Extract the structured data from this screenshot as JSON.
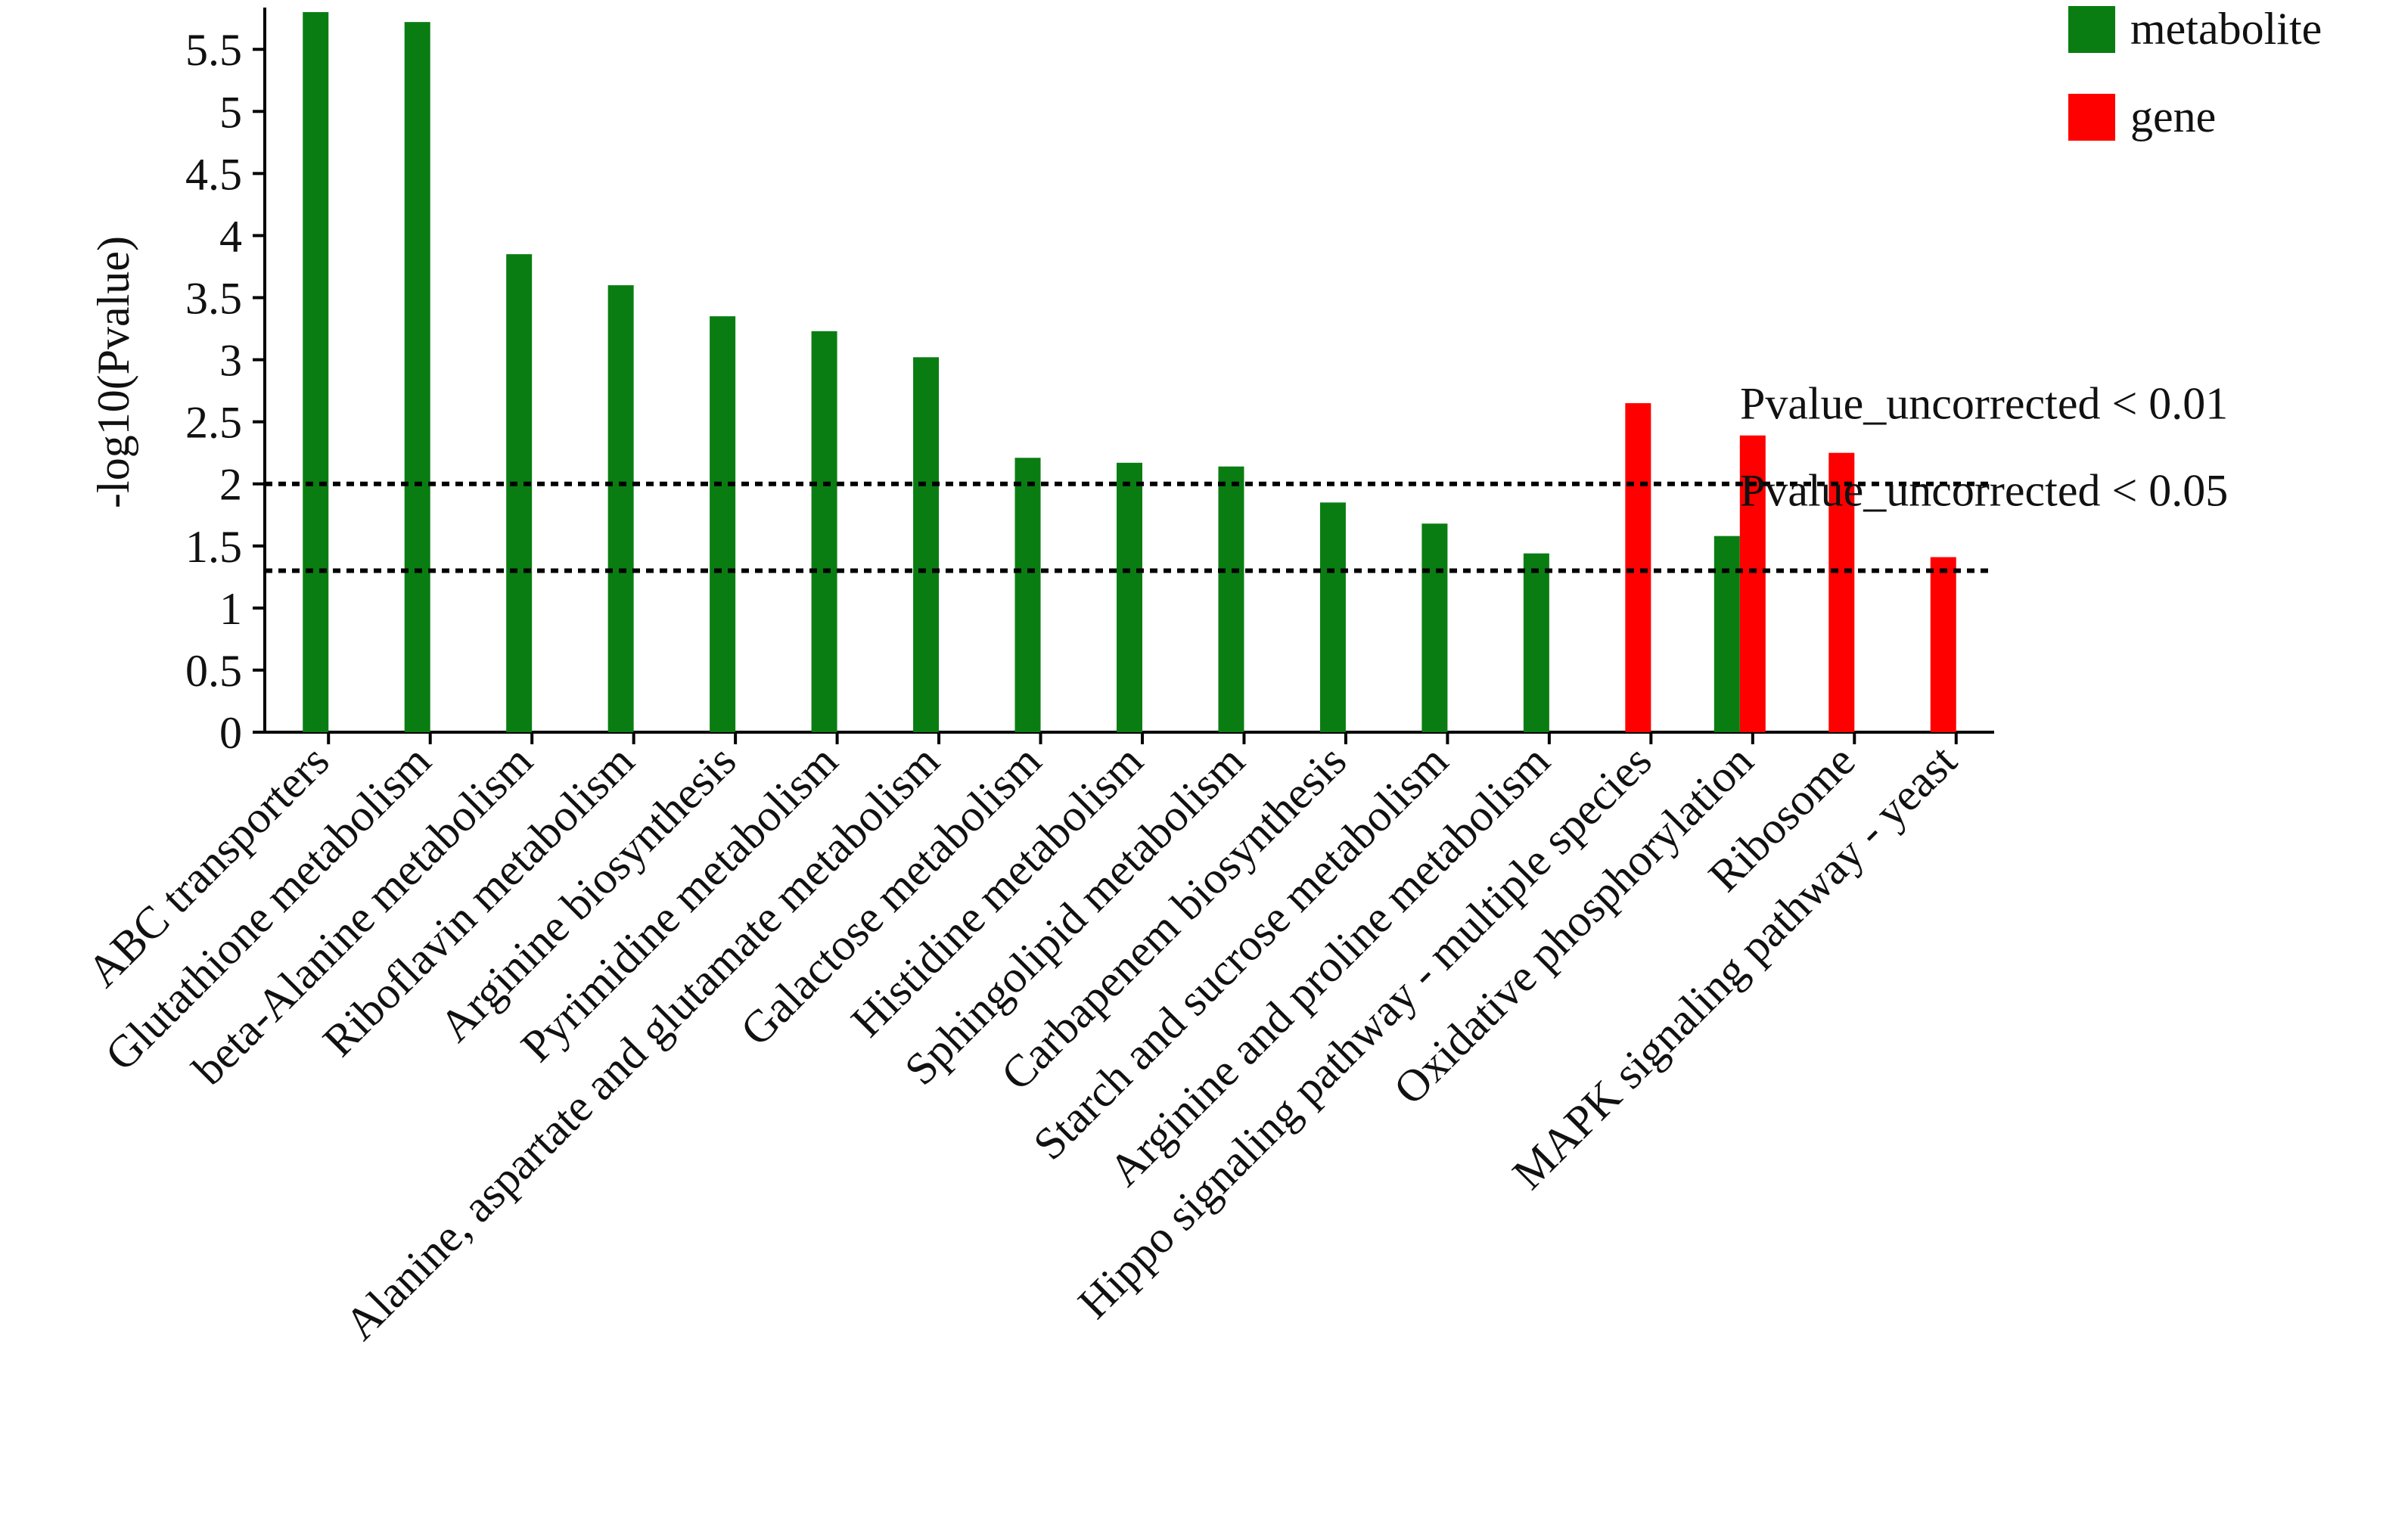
{
  "chart_data": {
    "type": "bar",
    "title": "",
    "xlabel": "",
    "ylabel": "-log10(Pvalue)",
    "ylim": [
      0,
      5.8
    ],
    "yticks": [
      "0",
      "0.5",
      "1",
      "1.5",
      "2",
      "2.5",
      "3",
      "3.5",
      "4",
      "4.5",
      "5",
      "5.5"
    ],
    "grid": false,
    "legend_position": "top-right",
    "categories": [
      "ABC transporters",
      "Glutathione metabolism",
      "beta-Alanine metabolism",
      "Riboflavin metabolism",
      "Arginine biosynthesis",
      "Pyrimidine metabolism",
      "Alanine, aspartate and glutamate metabolism",
      "Galactose metabolism",
      "Histidine metabolism",
      "Sphingolipid metabolism",
      "Carbapenem biosynthesis",
      "Starch and sucrose metabolism",
      "Arginine and proline metabolism",
      "Hippo signaling pathway - multiple species",
      "Oxidative phosphorylation",
      "Ribosome",
      "MAPK signaling pathway - yeast"
    ],
    "series": [
      {
        "name": "metabolite",
        "color": "#0a7d12",
        "values": [
          5.8,
          5.72,
          3.85,
          3.6,
          3.35,
          3.23,
          3.02,
          2.21,
          2.17,
          2.14,
          1.85,
          1.68,
          1.44,
          null,
          1.58,
          null,
          null
        ]
      },
      {
        "name": "gene",
        "color": "#ff0000",
        "values": [
          null,
          null,
          null,
          null,
          null,
          null,
          null,
          null,
          null,
          null,
          null,
          null,
          null,
          2.65,
          2.39,
          2.25,
          1.41
        ]
      }
    ],
    "thresholds": [
      {
        "value": 2,
        "label": "Pvalue_uncorrected < 0.01"
      },
      {
        "value": 1.301,
        "label": "Pvalue_uncorrected < 0.05"
      }
    ]
  }
}
